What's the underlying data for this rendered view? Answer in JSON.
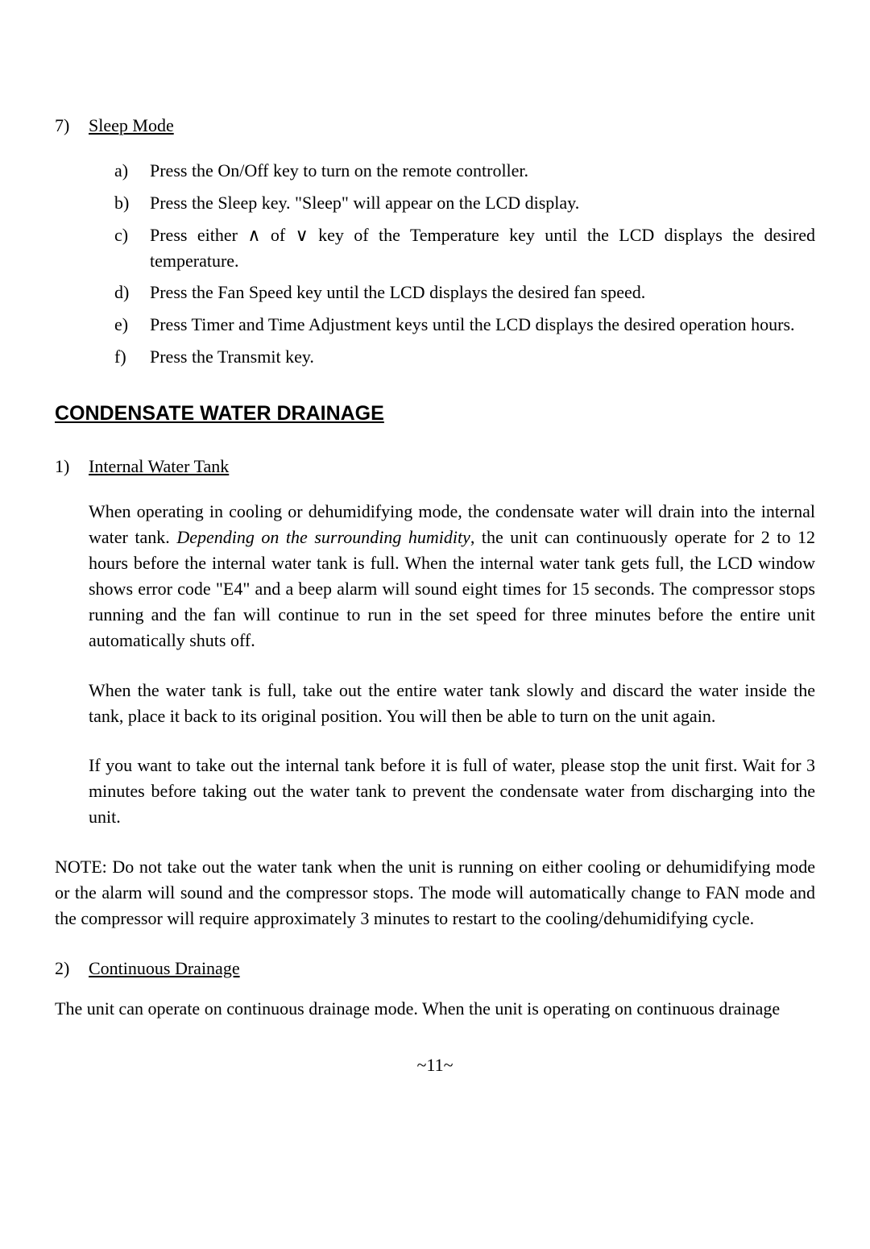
{
  "section7": {
    "marker": "7)",
    "title": "Sleep Mode",
    "items": [
      {
        "m": "a)",
        "t": "Press the On/Off key to turn on the remote controller."
      },
      {
        "m": "b)",
        "t": "Press the Sleep key.  \"Sleep\" will appear on the LCD display."
      },
      {
        "m": "c)",
        "t": "Press either ∧ of ∨ key of the Temperature key until the LCD displays the desired temperature."
      },
      {
        "m": "d)",
        "t": "Press the Fan Speed key until the LCD displays the desired fan speed."
      },
      {
        "m": "e)",
        "t": "Press Timer and Time Adjustment keys until the LCD displays the desired operation hours."
      },
      {
        "m": "f)",
        "t": "Press the Transmit key."
      }
    ]
  },
  "drainage": {
    "heading": "CONDENSATE WATER DRAINAGE",
    "item1": {
      "marker": "1)",
      "title": "Internal Water Tank",
      "p1a": "When operating in cooling or dehumidifying mode, the condensate water will drain into the internal water tank.  ",
      "p1b_italic": "Depending on the surrounding humidity",
      "p1c": ", the unit can continuously operate for 2 to 12 hours before the internal water tank is full.  When the internal water tank gets full, the LCD window shows error code \"E4\" and a beep alarm will sound eight times for 15 seconds.  The compressor stops running and the fan will continue to run in the set speed for three minutes before the entire unit automatically shuts off.",
      "p2": "When the water tank is full, take out the entire water tank slowly and discard the water inside the tank, place it back to its original position.  You will then be able to turn on the unit again.",
      "p3": "If you want to take out the internal tank before it is full of water, please stop the unit first. Wait for 3 minutes before taking out the water tank to prevent the condensate water from discharging into the unit."
    },
    "note": "NOTE:  Do not take out the water tank when the unit is running on either cooling or dehumidifying mode or the alarm will sound and the compressor stops.  The mode will automatically change to FAN mode and the compressor will require approximately 3 minutes to restart to the cooling/dehumidifying cycle.",
    "item2": {
      "marker": "2)",
      "title": "Continuous Drainage",
      "p1": "The unit can operate on continuous drainage mode.  When the unit is operating on continuous drainage"
    }
  },
  "footer": "~11~"
}
